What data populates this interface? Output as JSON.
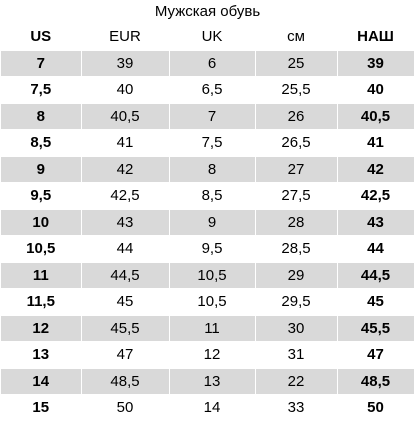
{
  "title": "Мужская обувь",
  "headers": [
    "US",
    "EUR",
    "UK",
    "см",
    "НАШ"
  ],
  "rows": [
    [
      "7",
      "39",
      "6",
      "25",
      "39"
    ],
    [
      "7,5",
      "40",
      "6,5",
      "25,5",
      "40"
    ],
    [
      "8",
      "40,5",
      "7",
      "26",
      "40,5"
    ],
    [
      "8,5",
      "41",
      "7,5",
      "26,5",
      "41"
    ],
    [
      "9",
      "42",
      "8",
      "27",
      "42"
    ],
    [
      "9,5",
      "42,5",
      "8,5",
      "27,5",
      "42,5"
    ],
    [
      "10",
      "43",
      "9",
      "28",
      "43"
    ],
    [
      "10,5",
      "44",
      "9,5",
      "28,5",
      "44"
    ],
    [
      "11",
      "44,5",
      "10,5",
      "29",
      "44,5"
    ],
    [
      "11,5",
      "45",
      "10,5",
      "29,5",
      "45"
    ],
    [
      "12",
      "45,5",
      "11",
      "30",
      "45,5"
    ],
    [
      "13",
      "47",
      "12",
      "31",
      "47"
    ],
    [
      "14",
      "48,5",
      "13",
      "22",
      "48,5"
    ],
    [
      "15",
      "50",
      "14",
      "33",
      "50"
    ]
  ],
  "colors": {
    "stripe": "#d9d9d9",
    "background": "#ffffff",
    "text": "#000000"
  }
}
